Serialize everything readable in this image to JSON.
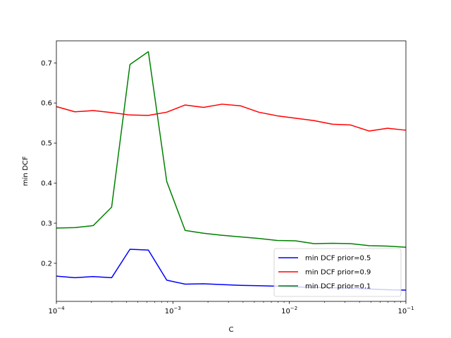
{
  "chart_data": {
    "type": "line",
    "xscale": "log",
    "xlabel": "C",
    "ylabel": "min DCF",
    "xlim": [
      0.0001,
      0.1
    ],
    "ylim": [
      0.105,
      0.755
    ],
    "xticks": [
      {
        "value": 0.0001,
        "base": "10",
        "exp": "−4"
      },
      {
        "value": 0.001,
        "base": "10",
        "exp": "−3"
      },
      {
        "value": 0.01,
        "base": "10",
        "exp": "−2"
      },
      {
        "value": 0.1,
        "base": "10",
        "exp": "−1"
      }
    ],
    "yticks": [
      0.2,
      0.3,
      0.4,
      0.5,
      0.6,
      0.7
    ],
    "ytick_labels": [
      "0.2",
      "0.3",
      "0.4",
      "0.5",
      "0.6",
      "0.7"
    ],
    "grid": false,
    "legend_position": "lower-right",
    "x": [
      0.0001,
      0.000144,
      0.000207,
      0.000298,
      0.000428,
      0.000616,
      0.000886,
      0.001274,
      0.001833,
      0.002637,
      0.003793,
      0.005456,
      0.007848,
      0.011288,
      0.016238,
      0.023357,
      0.033598,
      0.048329,
      0.069519,
      0.1
    ],
    "series": [
      {
        "name": "min DCF prior=0.5",
        "color": "#0000ff",
        "values": [
          0.168,
          0.164,
          0.167,
          0.164,
          0.235,
          0.233,
          0.158,
          0.148,
          0.149,
          0.147,
          0.145,
          0.144,
          0.143,
          0.141,
          0.14,
          0.139,
          0.138,
          0.136,
          0.134,
          0.133
        ]
      },
      {
        "name": "min DCF prior=0.9",
        "color": "#ff0000",
        "values": [
          0.591,
          0.578,
          0.581,
          0.576,
          0.57,
          0.569,
          0.577,
          0.595,
          0.589,
          0.597,
          0.593,
          0.577,
          0.568,
          0.562,
          0.556,
          0.547,
          0.545,
          0.53,
          0.537,
          0.532
        ]
      },
      {
        "name": "min DCF prior=0.1",
        "color": "#008000",
        "values": [
          0.288,
          0.289,
          0.294,
          0.34,
          0.696,
          0.728,
          0.404,
          0.282,
          0.275,
          0.27,
          0.266,
          0.262,
          0.257,
          0.256,
          0.249,
          0.25,
          0.249,
          0.244,
          0.243,
          0.24
        ]
      }
    ]
  }
}
